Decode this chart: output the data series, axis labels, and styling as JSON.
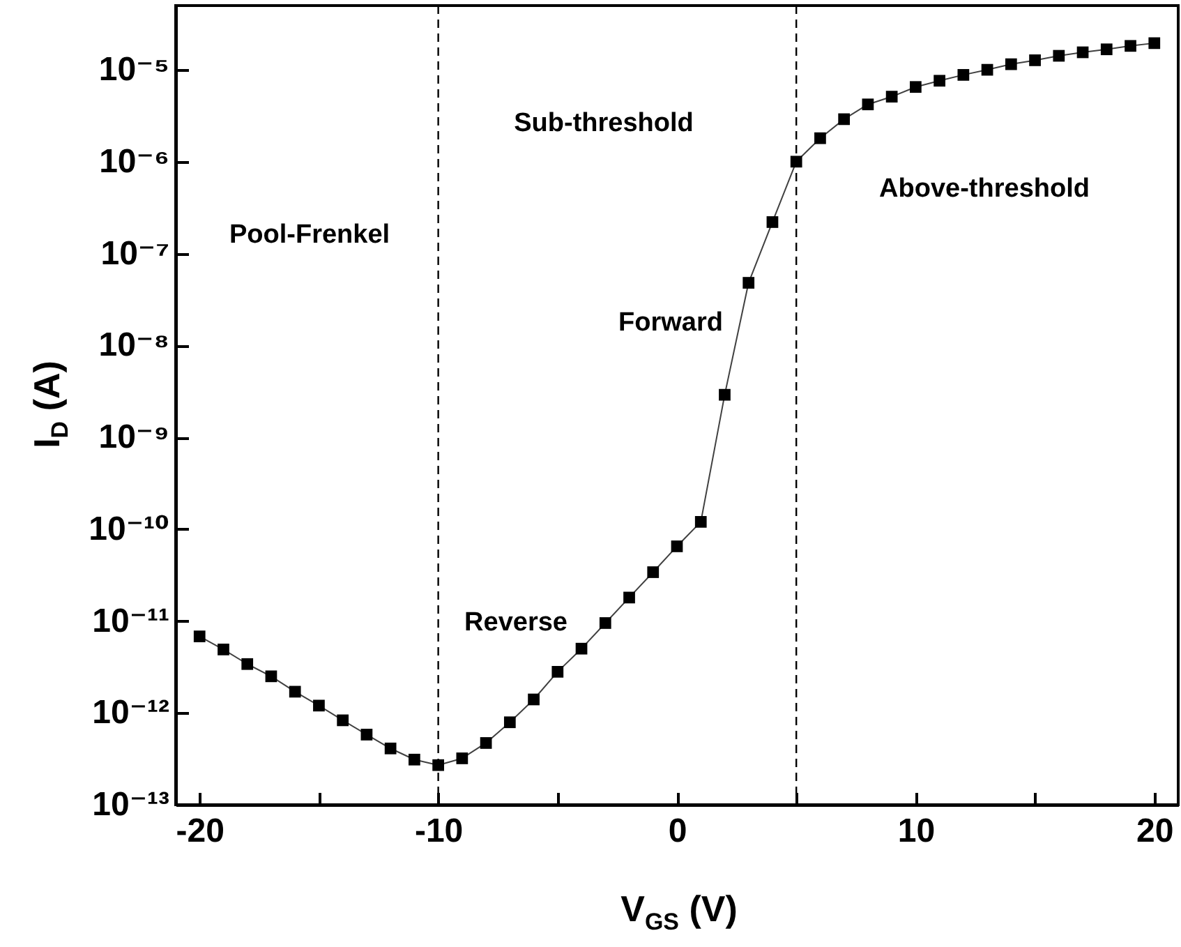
{
  "chart_data": {
    "type": "line",
    "xlabel": "V$_{GS}$ (V)",
    "ylabel": "I$_{D}$ (A)",
    "log": "y",
    "marker": "square",
    "line_style": "solid",
    "grid": false,
    "x": [
      -20,
      -19,
      -18,
      -17,
      -16,
      -15,
      -14,
      -13,
      -12,
      -11,
      -10,
      -9,
      -8,
      -7,
      -6,
      -5,
      -4,
      -3,
      -2,
      -1,
      0,
      1,
      2,
      3,
      4,
      5,
      6,
      7,
      8,
      9,
      10,
      11,
      12,
      13,
      14,
      15,
      16,
      17,
      18,
      19,
      20
    ],
    "series": [
      {
        "color": "#000000",
        "values": [
          6.8e-12,
          4.9e-12,
          3.4e-12,
          2.5e-12,
          1.7e-12,
          1.2e-12,
          8.3e-13,
          5.8e-13,
          4.1e-13,
          3.1e-13,
          2.7e-13,
          3.2e-13,
          4.7e-13,
          7.9e-13,
          1.4e-12,
          2.8e-12,
          5e-12,
          9.5e-12,
          1.8e-11,
          3.4e-11,
          6.5e-11,
          1.2e-10,
          2.9e-09,
          4.8e-08,
          2.2e-07,
          1e-06,
          1.8e-06,
          2.9e-06,
          4.2e-06,
          5.1e-06,
          6.5e-06,
          7.6e-06,
          8.8e-06,
          1e-05,
          1.15e-05,
          1.27e-05,
          1.42e-05,
          1.55e-05,
          1.67e-05,
          1.82e-05,
          1.95e-05
        ]
      }
    ],
    "xlim": [
      -21,
      21
    ],
    "xticks": [
      -20,
      {
        "value": -15,
        "label": null
      },
      -10,
      {
        "value": -5,
        "label": null
      },
      0,
      {
        "value": 5,
        "label": null
      },
      10,
      {
        "value": 15,
        "label": null
      },
      20
    ],
    "ylim": [
      1e-13,
      5e-05
    ],
    "yticks": [
      {
        "value": 1e-13,
        "label": "10⁻¹³"
      },
      {
        "value": 1e-12,
        "label": "10⁻¹²"
      },
      {
        "value": 1e-11,
        "label": "10⁻¹¹"
      },
      {
        "value": 1e-10,
        "label": "10⁻¹⁰"
      },
      {
        "value": 1e-09,
        "label": "10⁻⁹"
      },
      {
        "value": 1e-08,
        "label": "10⁻⁸"
      },
      {
        "value": 1e-07,
        "label": "10⁻⁷"
      },
      {
        "value": 1e-06,
        "label": "10⁻⁶"
      },
      {
        "value": 1e-05,
        "label": "10⁻⁵"
      }
    ],
    "ref_lines": [
      {
        "axis": "x",
        "value": -10,
        "line_style": "dashed",
        "color": "#000000"
      },
      {
        "axis": "x",
        "value": 5,
        "line_style": "dashed",
        "color": "#000000"
      }
    ],
    "annotations": [
      "Pool-Frenkel",
      "Sub-threshold",
      "Above-threshold",
      "Forward",
      "Reverse"
    ]
  }
}
